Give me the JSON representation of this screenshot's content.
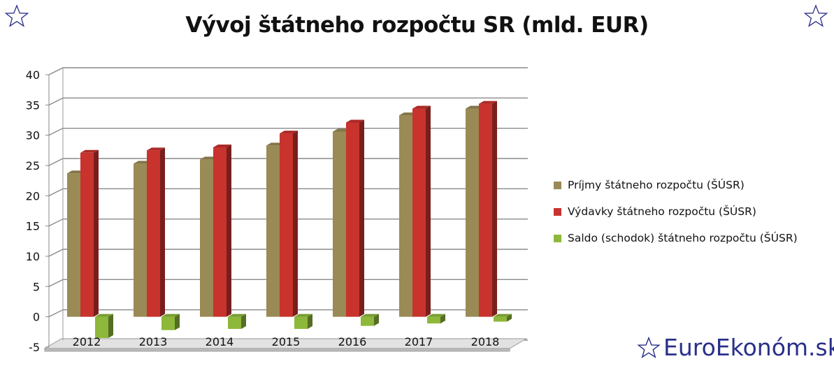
{
  "chart_data": {
    "type": "bar",
    "title": "Vývoj štátneho rozpočtu SR (mld. EUR)",
    "categories": [
      "2012",
      "2013",
      "2014",
      "2015",
      "2016",
      "2017",
      "2018"
    ],
    "series": [
      {
        "name": "Príjmy štátneho rozpočtu (ŠÚSR)",
        "color": "#9a8a55",
        "values": [
          23.7,
          25.3,
          26.0,
          28.3,
          30.6,
          33.3,
          34.4
        ]
      },
      {
        "name": "Výdavky štátneho rozpočtu (ŠÚSR)",
        "color": "#c8332e",
        "values": [
          27.1,
          27.5,
          28.0,
          30.3,
          32.1,
          34.4,
          35.2
        ]
      },
      {
        "name": "Saldo (schodok) štátneho rozpočtu (ŠÚSR)",
        "color": "#8db83a",
        "values": [
          -3.5,
          -2.2,
          -2.0,
          -2.0,
          -1.5,
          -1.1,
          -0.8
        ]
      }
    ],
    "yticks": [
      "40",
      "35",
      "30",
      "25",
      "20",
      "15",
      "10",
      "5",
      "0",
      "-5"
    ],
    "ylim": [
      -5,
      40
    ],
    "grid": true,
    "legend_position": "right"
  },
  "brand": {
    "text": "EuroEkonóm.sk",
    "color": "#2a2f8a"
  },
  "decor": {
    "star_color": "#2a2f8a"
  }
}
